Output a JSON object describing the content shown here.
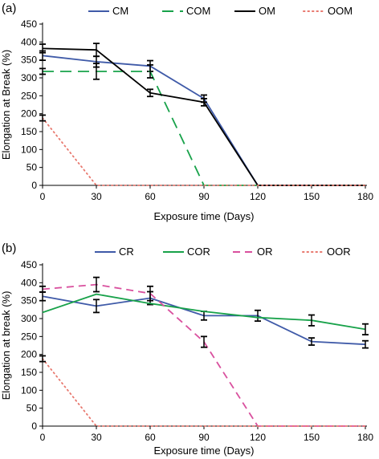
{
  "chart_data": [
    {
      "type": "line",
      "panel_label": "(a)",
      "xlabel": "Exposure time (Days)",
      "ylabel": "Elongation at Break (%)",
      "x": [
        0,
        30,
        60,
        90,
        120,
        150,
        180
      ],
      "xticks": [
        "0",
        "30",
        "60",
        "90",
        "120",
        "150",
        "180"
      ],
      "yticks": [
        "0",
        "50",
        "100",
        "150",
        "200",
        "250",
        "300",
        "350",
        "400",
        "450"
      ],
      "ylim": [
        0,
        450
      ],
      "grid": false,
      "legend_position": "top",
      "series": [
        {
          "name": "CM",
          "color": "#3f5aa8",
          "dash": "solid",
          "values": [
            362,
            345,
            333,
            242,
            0,
            0,
            0
          ],
          "errors": [
            13,
            15,
            15,
            10,
            0,
            0,
            0
          ]
        },
        {
          "name": "COM",
          "color": "#18a24a",
          "dash": "long-dash",
          "values": [
            318,
            318,
            318,
            0,
            0,
            0,
            0
          ],
          "errors": [
            8,
            22,
            18,
            0,
            0,
            0,
            0
          ]
        },
        {
          "name": "OM",
          "color": "#000000",
          "dash": "solid",
          "values": [
            382,
            378,
            258,
            232,
            0,
            0,
            0
          ],
          "errors": [
            12,
            18,
            10,
            10,
            0,
            0,
            0
          ]
        },
        {
          "name": "OOM",
          "color": "#e8786e",
          "dash": "dotted",
          "values": [
            188,
            0,
            0,
            0,
            0,
            0,
            0
          ],
          "errors": [
            8,
            0,
            0,
            0,
            0,
            0,
            0
          ]
        }
      ]
    },
    {
      "type": "line",
      "panel_label": "(b)",
      "xlabel": "Exposure time (Days)",
      "ylabel": "Elongation at break (%)",
      "x": [
        0,
        30,
        60,
        90,
        120,
        150,
        180
      ],
      "xticks": [
        "0",
        "30",
        "60",
        "90",
        "120",
        "150",
        "180"
      ],
      "yticks": [
        "0",
        "50",
        "100",
        "150",
        "200",
        "250",
        "300",
        "350",
        "400",
        "450"
      ],
      "ylim": [
        0,
        450
      ],
      "grid": false,
      "legend_position": "top",
      "series": [
        {
          "name": "CR",
          "color": "#3f5aa8",
          "dash": "solid",
          "values": [
            362,
            335,
            357,
            308,
            308,
            236,
            228
          ],
          "errors": [
            12,
            18,
            18,
            12,
            15,
            10,
            10
          ]
        },
        {
          "name": "COR",
          "color": "#18a24a",
          "dash": "solid",
          "values": [
            317,
            368,
            342,
            320,
            303,
            295,
            270
          ],
          "errors": [
            0,
            0,
            0,
            0,
            0,
            15,
            15
          ]
        },
        {
          "name": "OR",
          "color": "#d9509e",
          "dash": "dashed",
          "values": [
            382,
            395,
            370,
            235,
            0,
            0,
            0
          ],
          "errors": [
            8,
            20,
            20,
            15,
            0,
            0,
            0
          ]
        },
        {
          "name": "OOR",
          "color": "#e8786e",
          "dash": "dotted",
          "values": [
            188,
            0,
            0,
            0,
            0,
            0,
            0
          ],
          "errors": [
            8,
            0,
            0,
            0,
            0,
            0,
            0
          ]
        }
      ]
    }
  ]
}
